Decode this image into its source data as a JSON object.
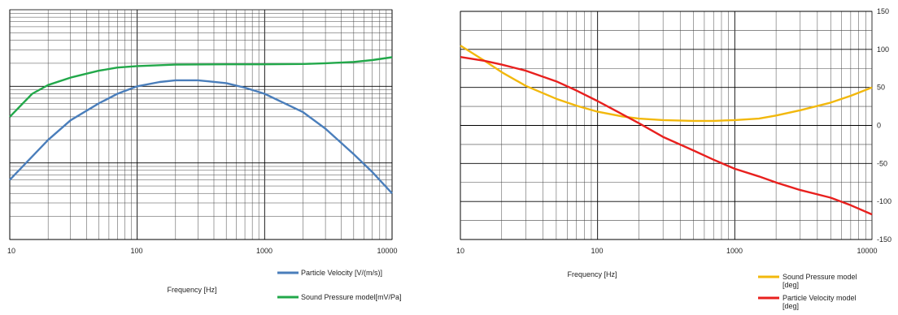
{
  "chart_data": [
    {
      "type": "line",
      "title": "",
      "xlabel": "Frequency [Hz]",
      "ylabel": "",
      "x_scale": "log",
      "xlim": [
        10,
        10000
      ],
      "x_ticks": [
        "10",
        "100",
        "1000",
        "10000"
      ],
      "y_scale": "log",
      "y_ticks": [],
      "grid": true,
      "legend_position": "bottom-right",
      "series": [
        {
          "name": "Particle Velocity  [V/(m/s)]",
          "color": "#4a7ebb",
          "points": [
            [
              10,
              0.003
            ],
            [
              20,
              0.01
            ],
            [
              30,
              0.018
            ],
            [
              50,
              0.03
            ],
            [
              70,
              0.04
            ],
            [
              100,
              0.05
            ],
            [
              150,
              0.057
            ],
            [
              200,
              0.06
            ],
            [
              300,
              0.06
            ],
            [
              500,
              0.055
            ],
            [
              700,
              0.048
            ],
            [
              1000,
              0.04
            ],
            [
              2000,
              0.023
            ],
            [
              3000,
              0.014
            ],
            [
              5000,
              0.0065
            ],
            [
              7000,
              0.0038
            ],
            [
              10000,
              0.002
            ]
          ]
        },
        {
          "name": "Sound Pressure model[mV/Pa]",
          "color": "#22a84a",
          "points": [
            [
              10,
              0.02
            ],
            [
              15,
              0.04
            ],
            [
              20,
              0.052
            ],
            [
              30,
              0.065
            ],
            [
              50,
              0.08
            ],
            [
              70,
              0.088
            ],
            [
              100,
              0.092
            ],
            [
              200,
              0.096
            ],
            [
              500,
              0.097
            ],
            [
              1000,
              0.097
            ],
            [
              2000,
              0.098
            ],
            [
              3000,
              0.1
            ],
            [
              5000,
              0.104
            ],
            [
              7000,
              0.11
            ],
            [
              10000,
              0.12
            ]
          ]
        }
      ]
    },
    {
      "type": "line",
      "title": "",
      "xlabel": "Frequency [Hz]",
      "ylabel": "",
      "x_scale": "log",
      "xlim": [
        10,
        10000
      ],
      "x_ticks": [
        "10",
        "100",
        "1000",
        "10000"
      ],
      "ylim": [
        -150,
        150
      ],
      "y_ticks": [
        "150",
        "100",
        "50",
        "0",
        "-50",
        "-100",
        "-150"
      ],
      "y_axis_side": "right",
      "grid": true,
      "legend_position": "bottom-right",
      "series": [
        {
          "name": "Sound Pressure model [deg]",
          "color": "#f2b80c",
          "points": [
            [
              10,
              105
            ],
            [
              15,
              85
            ],
            [
              20,
              70
            ],
            [
              30,
              52
            ],
            [
              50,
              35
            ],
            [
              70,
              26
            ],
            [
              100,
              18
            ],
            [
              150,
              12
            ],
            [
              200,
              9
            ],
            [
              300,
              7
            ],
            [
              500,
              6
            ],
            [
              700,
              6
            ],
            [
              1000,
              7
            ],
            [
              1500,
              9
            ],
            [
              2000,
              13
            ],
            [
              3000,
              20
            ],
            [
              5000,
              30
            ],
            [
              7000,
              39
            ],
            [
              10000,
              50
            ]
          ]
        },
        {
          "name": "Particle Velocity model [deg]",
          "color": "#e8201e",
          "points": [
            [
              10,
              90
            ],
            [
              15,
              85
            ],
            [
              20,
              80
            ],
            [
              30,
              72
            ],
            [
              50,
              58
            ],
            [
              70,
              46
            ],
            [
              100,
              32
            ],
            [
              150,
              15
            ],
            [
              200,
              3
            ],
            [
              300,
              -15
            ],
            [
              500,
              -33
            ],
            [
              700,
              -45
            ],
            [
              1000,
              -57
            ],
            [
              1500,
              -67
            ],
            [
              2000,
              -75
            ],
            [
              3000,
              -85
            ],
            [
              5000,
              -95
            ],
            [
              7000,
              -105
            ],
            [
              10000,
              -117
            ]
          ]
        }
      ]
    }
  ]
}
